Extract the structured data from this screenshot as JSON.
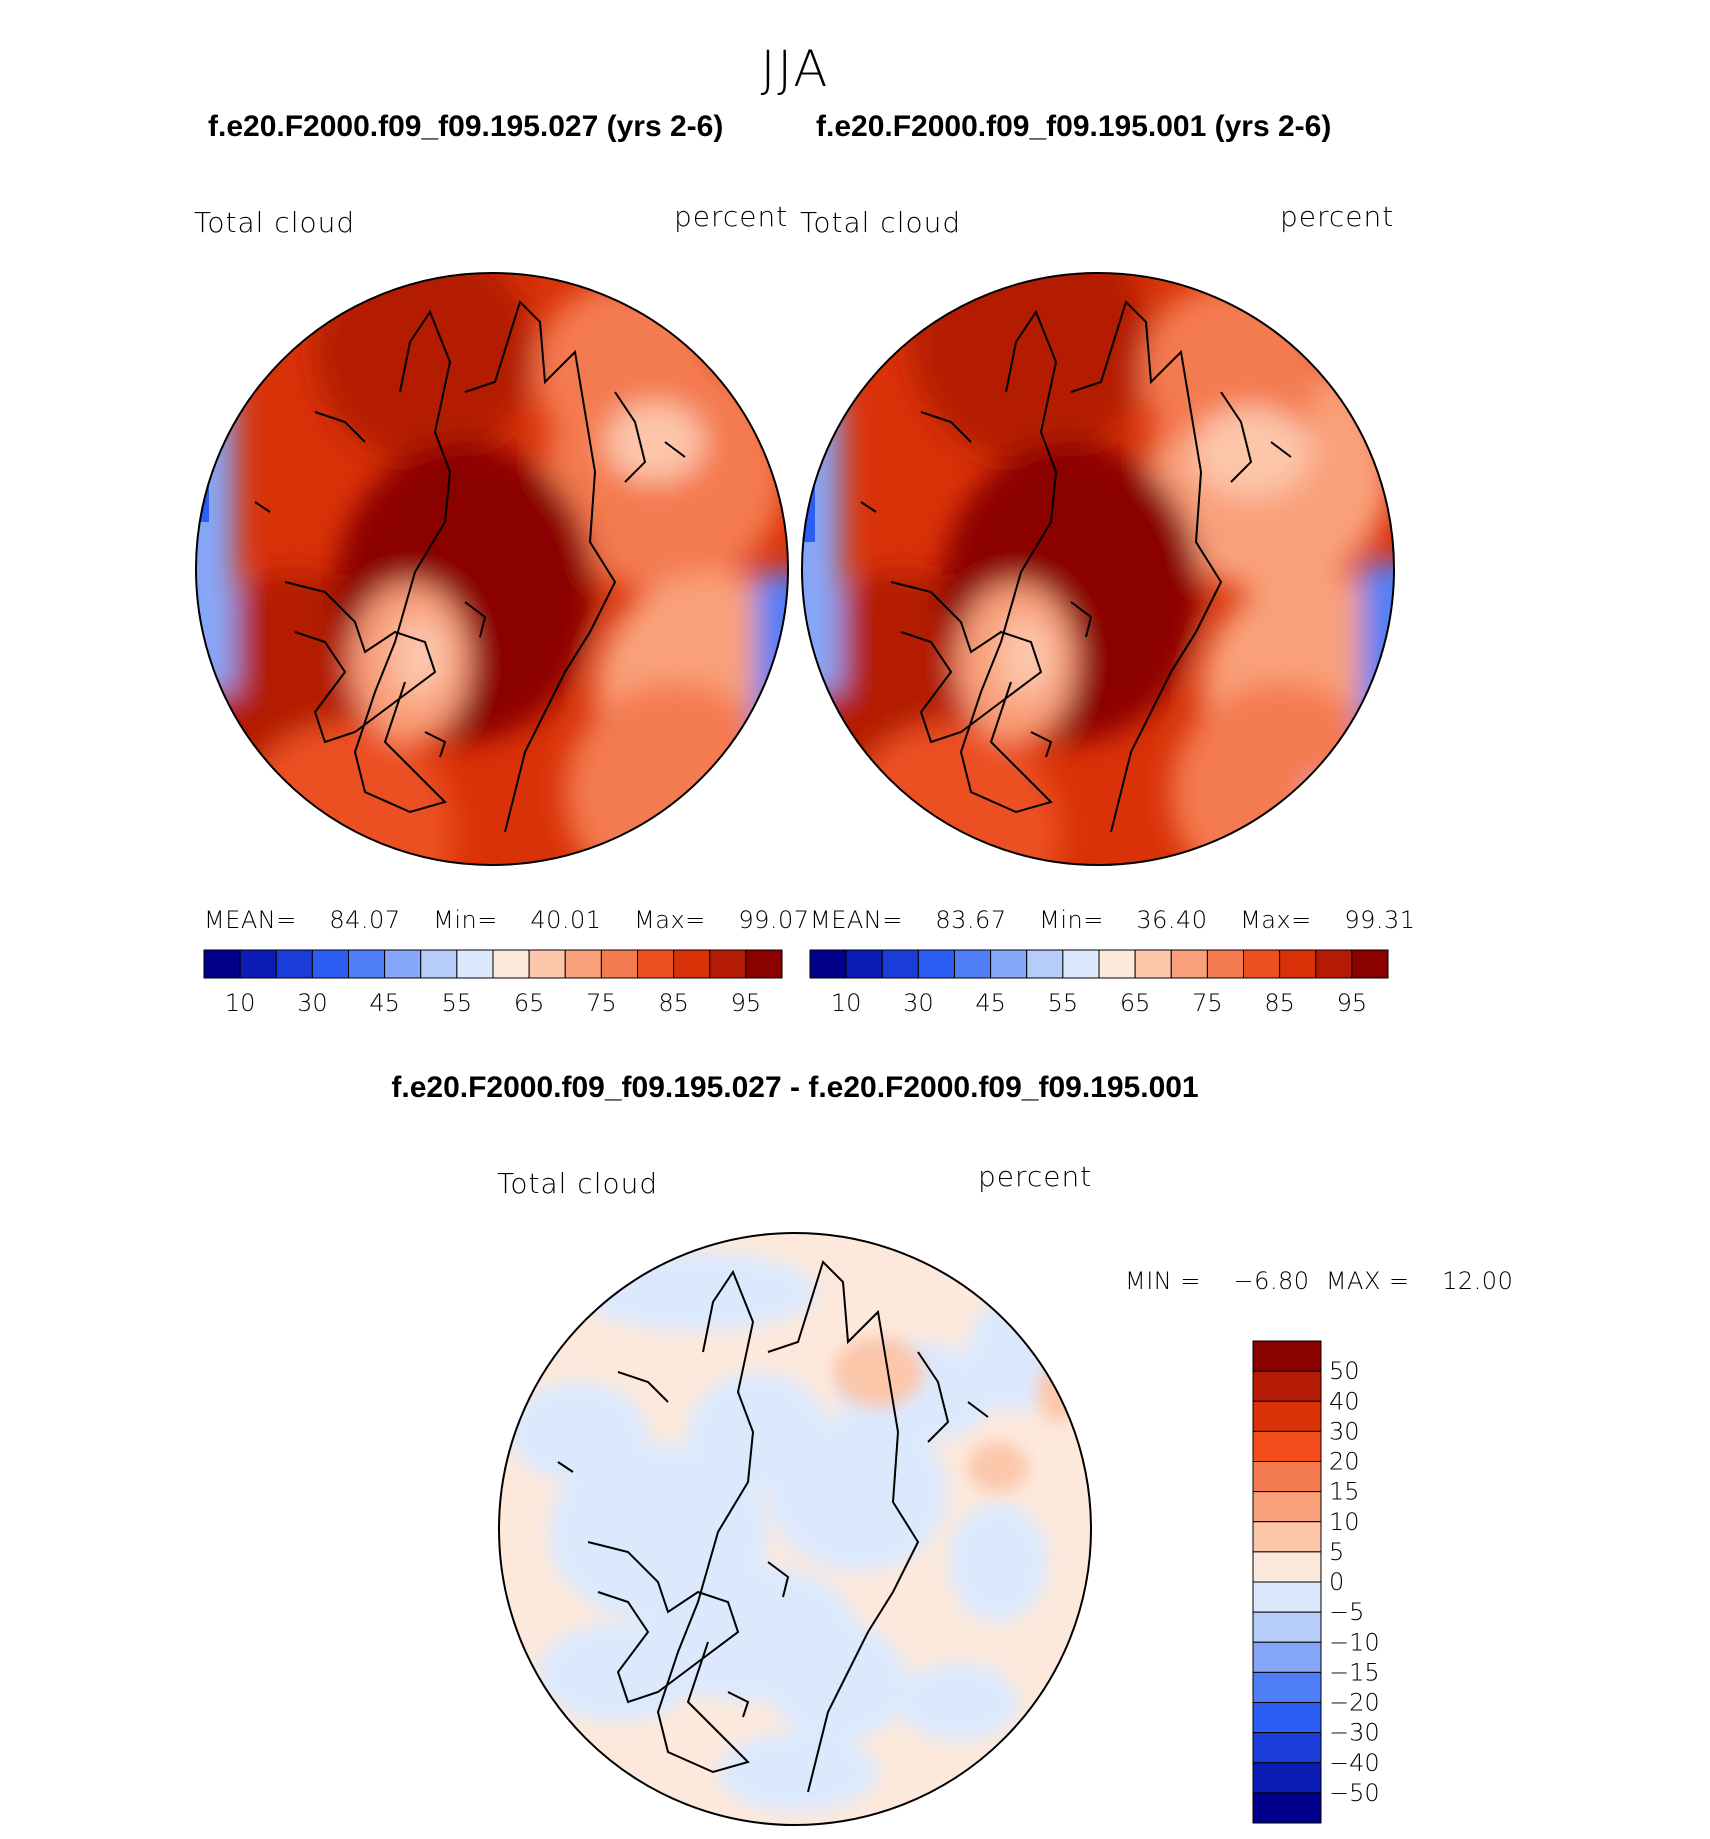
{
  "season": "JJA",
  "panels": [
    {
      "case_title": "f.e20.F2000.f09_f09.195.027 (yrs 2-6)",
      "variable": "Total cloud",
      "units": "percent",
      "stats": {
        "mean_label": "MEAN=",
        "mean": "84.07",
        "min_label": "Min=",
        "min": "40.01",
        "max_label": "Max=",
        "max": "99.07"
      }
    },
    {
      "case_title": "f.e20.F2000.f09_f09.195.001 (yrs 2-6)",
      "variable": "Total cloud",
      "units": "percent",
      "stats": {
        "mean_label": "MEAN=",
        "mean": "83.67",
        "min_label": "Min=",
        "min": "36.40",
        "max_label": "Max=",
        "max": "99.31"
      }
    }
  ],
  "colorbar": {
    "colors": [
      "#00008b",
      "#0a1bb6",
      "#1a3cd9",
      "#2c5ef5",
      "#4f7ff7",
      "#86a7f9",
      "#b6cdfb",
      "#dce9fd",
      "#fde9dc",
      "#fcc6ab",
      "#f9a07a",
      "#f47a50",
      "#ec5020",
      "#d93208",
      "#b31b04",
      "#8b0000"
    ],
    "labels": [
      "10",
      "30",
      "45",
      "55",
      "65",
      "75",
      "85",
      "95"
    ]
  },
  "difference": {
    "title": "f.e20.F2000.f09_f09.195.027 - f.e20.F2000.f09_f09.195.001",
    "variable": "Total cloud",
    "units": "percent",
    "min_label": "MIN =",
    "min": "−6.80",
    "max_label": "MAX =",
    "max": "12.00",
    "colorbar": {
      "colors_top_to_bottom": [
        "#8b0000",
        "#b31b04",
        "#d93208",
        "#f24d1a",
        "#f47a50",
        "#f9a07a",
        "#fcc6ab",
        "#fde9dc",
        "#dce9fd",
        "#b6cdfb",
        "#86a7f9",
        "#4f7ff7",
        "#2c5ef5",
        "#1a3cd9",
        "#0a1bb6",
        "#00008b"
      ],
      "labels": [
        "50",
        "40",
        "30",
        "20",
        "15",
        "10",
        "5",
        "0",
        "−5",
        "−10",
        "−15",
        "−20",
        "−30",
        "−40",
        "−50"
      ]
    }
  }
}
